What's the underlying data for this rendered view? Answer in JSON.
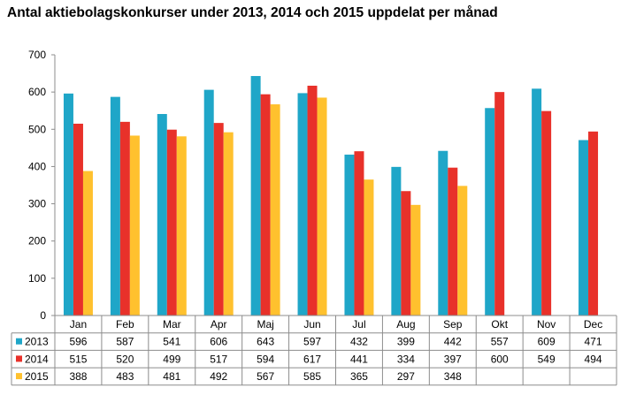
{
  "chart_data": {
    "type": "bar",
    "title": "Antal aktiebolagskonkurser under 2013, 2014 och 2015 uppdelat per månad",
    "categories": [
      "Jan",
      "Feb",
      "Mar",
      "Apr",
      "Maj",
      "Jun",
      "Jul",
      "Aug",
      "Sep",
      "Okt",
      "Nov",
      "Dec"
    ],
    "series": [
      {
        "name": "2013",
        "color": "#1FA6C8",
        "values": [
          596,
          587,
          541,
          606,
          643,
          597,
          432,
          399,
          442,
          557,
          609,
          471
        ]
      },
      {
        "name": "2014",
        "color": "#E8312A",
        "values": [
          515,
          520,
          499,
          517,
          594,
          617,
          441,
          334,
          397,
          600,
          549,
          494
        ]
      },
      {
        "name": "2015",
        "color": "#FFC12E",
        "values": [
          388,
          483,
          481,
          492,
          567,
          585,
          365,
          297,
          348,
          null,
          null,
          null
        ]
      }
    ],
    "ylim": [
      0,
      700
    ],
    "yticks": [
      0,
      100,
      200,
      300,
      400,
      500,
      600,
      700
    ],
    "grid": false,
    "legend": "data-table-below",
    "data_table": true
  }
}
